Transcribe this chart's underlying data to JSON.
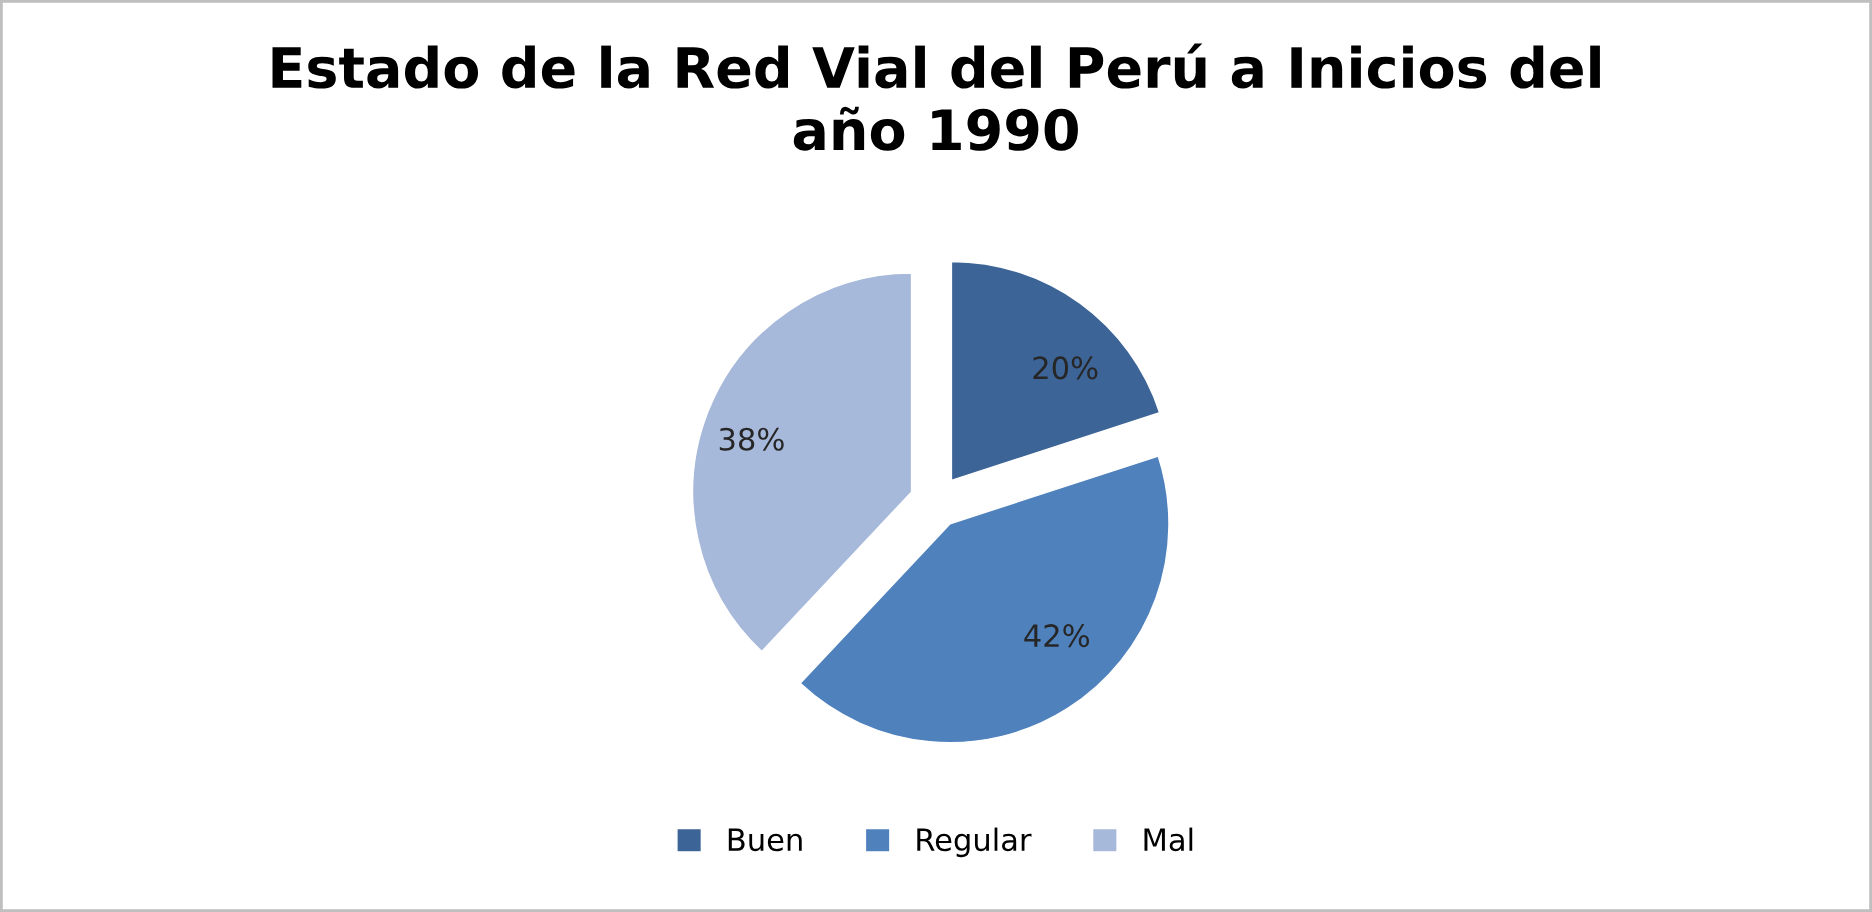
{
  "chart_data": {
    "type": "pie",
    "title": "Estado de la Red Vial del Perú a Inicios del\naño 1990",
    "categories": [
      "Buen",
      "Regular",
      "Mal"
    ],
    "values": [
      20,
      42,
      38
    ],
    "colors": [
      "#3d6496",
      "#4f81bd",
      "#a7b9da"
    ],
    "value_labels": [
      "20%",
      "42%",
      "38%"
    ],
    "legend": "bottom"
  }
}
